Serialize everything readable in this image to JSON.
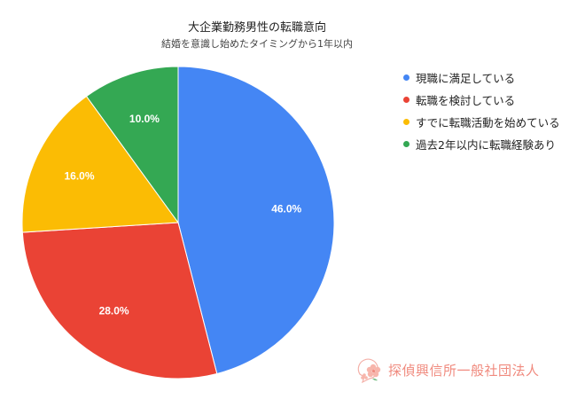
{
  "chart_data": {
    "type": "pie",
    "title": "大企業勤務男性の転職意向",
    "subtitle": "結婚を意識し始めたタイミングから1年以内",
    "categories": [
      "現職に満足している",
      "転職を検討している",
      "すでに転職活動を始めている",
      "過去2年以内に転職経験あり"
    ],
    "values": [
      46.0,
      28.0,
      16.0,
      10.0
    ],
    "labels": [
      "46.0%",
      "28.0%",
      "16.0%",
      "10.0%"
    ],
    "colors": [
      "#4486f4",
      "#ea4335",
      "#fbbc04",
      "#34a853"
    ],
    "legend_position": "right",
    "start_angle": "12 o'clock, clockwise"
  },
  "title": "大企業勤務男性の転職意向",
  "subtitle": "結婚を意識し始めたタイミングから1年以内",
  "legend": [
    {
      "label": "現職に満足している",
      "color": "#4486f4"
    },
    {
      "label": "転職を検討している",
      "color": "#ea4335"
    },
    {
      "label": "すでに転職活動を始めている",
      "color": "#fbbc04"
    },
    {
      "label": "過去2年以内に転職経験あり",
      "color": "#34a853"
    }
  ],
  "watermark": {
    "text": "探偵興信所一般社団法人",
    "icon": "sakura-speech-bubble-icon"
  }
}
